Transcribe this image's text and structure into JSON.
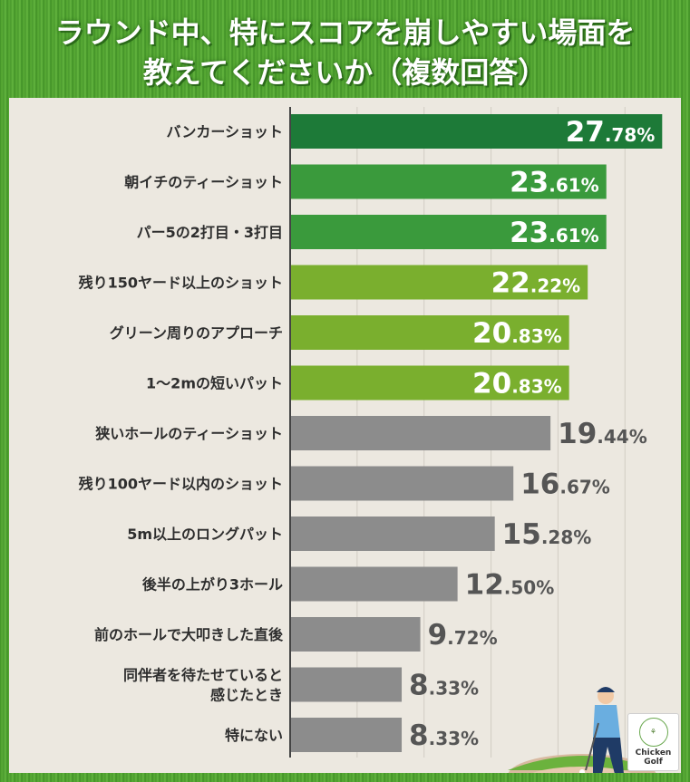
{
  "title": {
    "line1": "ラウンド中、特にスコアを崩しやすい場面を",
    "line2": "教えてくださいか（複数回答）"
  },
  "logo": {
    "line1": "Chicken",
    "line2": "Golf"
  },
  "colors": {
    "dark_green": "#1d7a38",
    "mid_green": "#3a9a3c",
    "light_green": "#7aaf2e",
    "gray": "#8c8c8c",
    "value_dark": "#555555",
    "value_light": "#ffffff"
  },
  "chart_data": {
    "type": "bar",
    "orientation": "horizontal",
    "categories": [
      [
        "バンカーショット"
      ],
      [
        "朝イチのティーショット"
      ],
      [
        "パー5の2打目・3打目"
      ],
      [
        "残り150ヤード以上のショット"
      ],
      [
        "グリーン周りのアプローチ"
      ],
      [
        "1～2mの短いパット"
      ],
      [
        "狭いホールのティーショット"
      ],
      [
        "残り100ヤード以内のショット"
      ],
      [
        "5m以上のロングパット"
      ],
      [
        "後半の上がり3ホール"
      ],
      [
        "前のホールで大叩きした直後"
      ],
      [
        "同伴者を待たせていると",
        "感じたとき"
      ],
      [
        "特にない"
      ]
    ],
    "values": [
      27.78,
      23.61,
      23.61,
      22.22,
      20.83,
      20.83,
      19.44,
      16.67,
      15.28,
      12.5,
      9.72,
      8.33,
      8.33
    ],
    "value_labels": [
      [
        "27",
        ".78%"
      ],
      [
        "23",
        ".61%"
      ],
      [
        "23",
        ".61%"
      ],
      [
        "22",
        ".22%"
      ],
      [
        "20",
        ".83%"
      ],
      [
        "20",
        ".83%"
      ],
      [
        "19",
        ".44%"
      ],
      [
        "16",
        ".67%"
      ],
      [
        "15",
        ".28%"
      ],
      [
        "12",
        ".50%"
      ],
      [
        "9",
        ".72%"
      ],
      [
        "8",
        ".33%"
      ],
      [
        "8",
        ".33%"
      ]
    ],
    "bar_colors": [
      "dark_green",
      "mid_green",
      "mid_green",
      "light_green",
      "light_green",
      "light_green",
      "gray",
      "gray",
      "gray",
      "gray",
      "gray",
      "gray",
      "gray"
    ],
    "xlim": [
      0,
      30
    ],
    "grid": true
  }
}
